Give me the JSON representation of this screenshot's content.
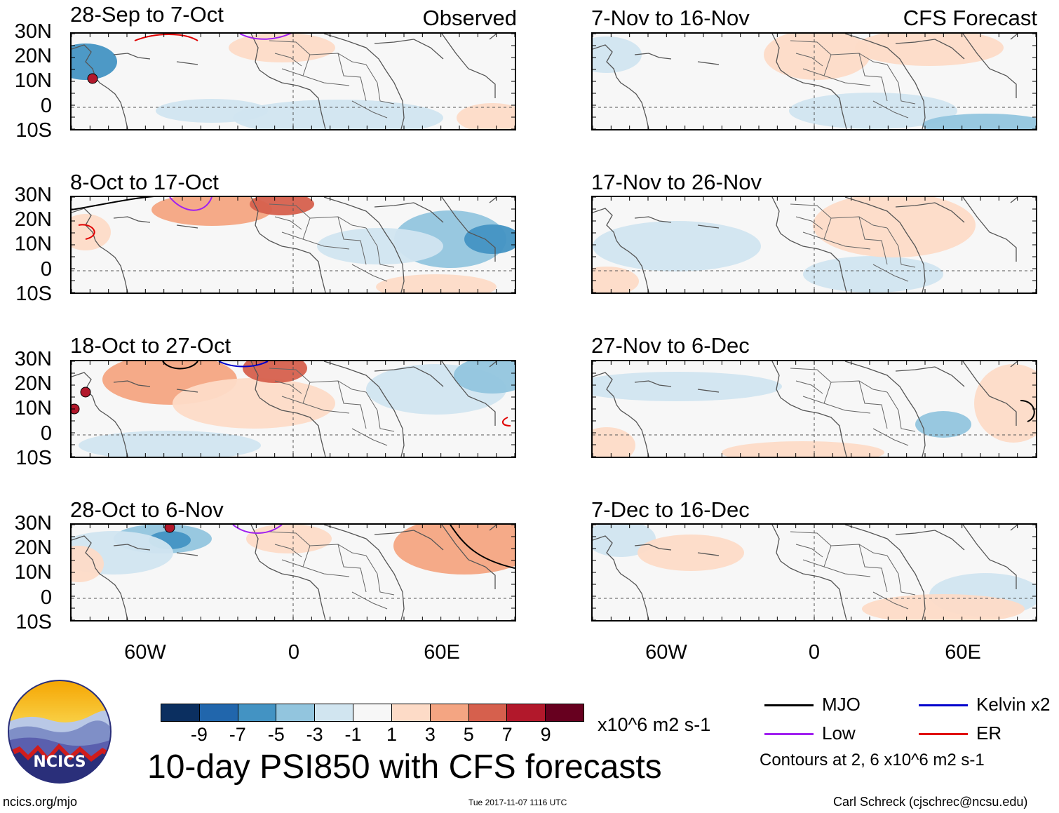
{
  "header": {
    "observed_label": "Observed",
    "forecast_label": "CFS Forecast"
  },
  "panels_left": [
    {
      "title": "28-Sep to 7-Oct"
    },
    {
      "title": "8-Oct to 17-Oct"
    },
    {
      "title": "18-Oct to 27-Oct"
    },
    {
      "title": "28-Oct to 6-Nov"
    }
  ],
  "panels_right": [
    {
      "title": "7-Nov to 16-Nov"
    },
    {
      "title": "17-Nov to 26-Nov"
    },
    {
      "title": "27-Nov to 6-Dec"
    },
    {
      "title": "7-Dec to 16-Dec"
    }
  ],
  "lat_labels": [
    "30N",
    "20N",
    "10N",
    "0",
    "10S"
  ],
  "lon_labels": [
    "60W",
    "0",
    "60E"
  ],
  "colorbar": {
    "colors": [
      "#0b2f60",
      "#2166ac",
      "#4393c3",
      "#92c5de",
      "#d1e5f0",
      "#f7f7f7",
      "#fddbc7",
      "#f4a582",
      "#d6604d",
      "#b2182b",
      "#67001f"
    ],
    "labels": [
      "-9",
      "-7",
      "-5",
      "-3",
      "-1",
      "1",
      "3",
      "5",
      "7",
      "9"
    ],
    "units": "x10^6 m2 s-1"
  },
  "title": "10-day PSI850 with CFS forecasts",
  "legend": {
    "mjo": "MJO",
    "kelvin": "Kelvin x2",
    "low": "Low",
    "er": "ER",
    "contours_note": "Contours at 2, 6 x10^6 m2 s-1"
  },
  "legend_colors": {
    "mjo": "#000000",
    "kelvin": "#0000cc",
    "low": "#a020f0",
    "er": "#e00000"
  },
  "logo": {
    "text": "NCICS"
  },
  "footer": {
    "url": "ncics.org/mjo",
    "timestamp": "Tue 2017-11-07 1116 UTC",
    "credit": "Carl Schreck (cjschrec@ncsu.edu)"
  }
}
